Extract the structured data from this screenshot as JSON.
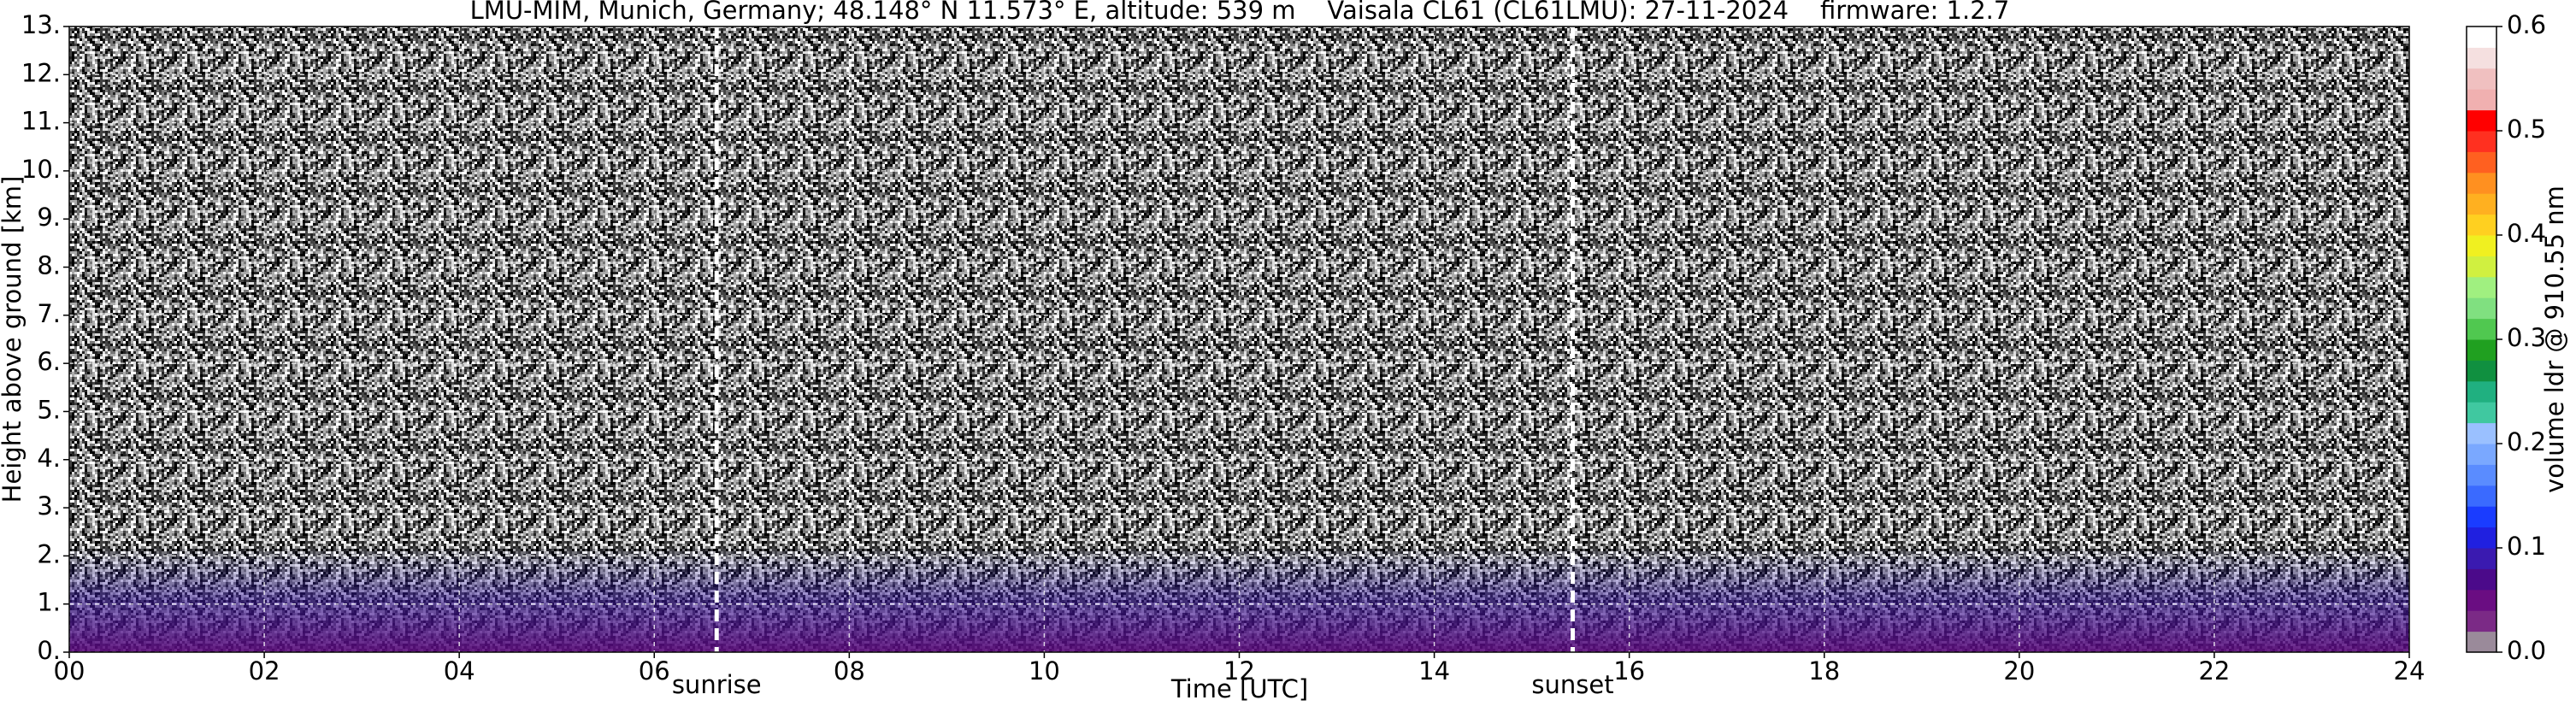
{
  "chart_data": {
    "type": "heatmap",
    "title": "LMU-MIM, Munich, Germany; 48.148° N 11.573° E, altitude: 539 m    Vaisala CL61 (CL61LMU): 27-11-2024    firmware: 1.2.7",
    "xlabel": "Time [UTC]",
    "ylabel": "Height above ground [km]",
    "xlim": [
      0,
      24
    ],
    "xticks": [
      {
        "value": 0,
        "label": "00"
      },
      {
        "value": 2,
        "label": "02"
      },
      {
        "value": 4,
        "label": "04"
      },
      {
        "value": 6,
        "label": "06"
      },
      {
        "value": 8,
        "label": "08"
      },
      {
        "value": 10,
        "label": "10"
      },
      {
        "value": 12,
        "label": "12"
      },
      {
        "value": 14,
        "label": "14"
      },
      {
        "value": 16,
        "label": "16"
      },
      {
        "value": 18,
        "label": "18"
      },
      {
        "value": 20,
        "label": "20"
      },
      {
        "value": 22,
        "label": "22"
      },
      {
        "value": 24,
        "label": "24"
      }
    ],
    "ylim": [
      0,
      13
    ],
    "yticks": [
      {
        "value": 0,
        "label": "0."
      },
      {
        "value": 1,
        "label": "1."
      },
      {
        "value": 2,
        "label": "2."
      },
      {
        "value": 3,
        "label": "3."
      },
      {
        "value": 4,
        "label": "4."
      },
      {
        "value": 5,
        "label": "5."
      },
      {
        "value": 6,
        "label": "6."
      },
      {
        "value": 7,
        "label": "7."
      },
      {
        "value": 8,
        "label": "8."
      },
      {
        "value": 9,
        "label": "9."
      },
      {
        "value": 10,
        "label": "10."
      },
      {
        "value": 11,
        "label": "11."
      },
      {
        "value": 12,
        "label": "12."
      },
      {
        "value": 13,
        "label": "13."
      }
    ],
    "grid": true,
    "annotations": [
      {
        "text": "sunrise",
        "x": 6.64
      },
      {
        "text": "sunset",
        "x": 15.42
      }
    ],
    "colorbar": {
      "label": "volume ldr @ 910.55 nm",
      "lim": [
        0,
        0.6
      ],
      "ticks": [
        {
          "value": 0,
          "label": "0.0"
        },
        0.1,
        0.2,
        0.3,
        0.4,
        0.5,
        0.6
      ],
      "colors": [
        "#9a8a9a",
        "#7b2a86",
        "#6a0d82",
        "#4b0a8a",
        "#3a1ab0",
        "#2020e0",
        "#1a3cff",
        "#3a6aff",
        "#5a8cff",
        "#7aa8ff",
        "#9ac0ff",
        "#40c8a0",
        "#20b080",
        "#109040",
        "#20a020",
        "#50c850",
        "#80e080",
        "#a0f080",
        "#d0f040",
        "#f0f020",
        "#ffd020",
        "#ffb020",
        "#ff9020",
        "#ff6020",
        "#ff3020",
        "#ff0000",
        "#f0b0b0",
        "#f0c0c0",
        "#f5e0e0",
        "#ffffff"
      ]
    }
  }
}
